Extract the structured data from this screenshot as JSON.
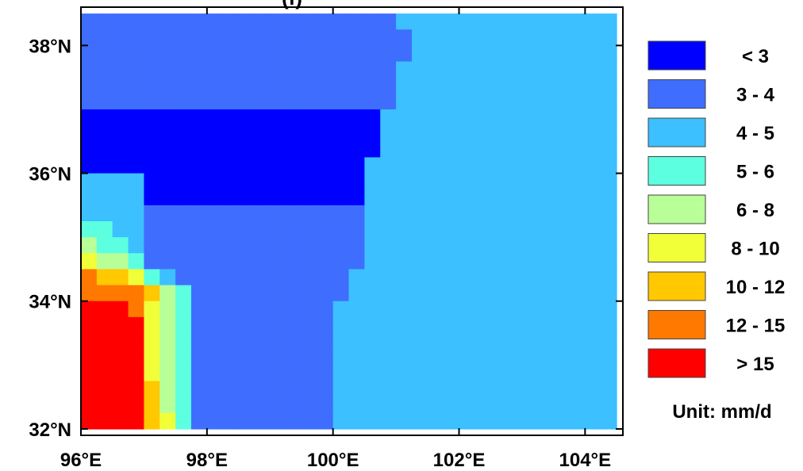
{
  "chart_data": {
    "type": "heatmap",
    "title": "(f)",
    "axes": {
      "x_range": [
        96.0,
        104.6
      ],
      "y_range": [
        31.9,
        38.6
      ],
      "x_ticks": [
        {
          "value": 96,
          "label": "96°E"
        },
        {
          "value": 98,
          "label": "98°E"
        },
        {
          "value": 100,
          "label": "100°E"
        },
        {
          "value": 102,
          "label": "102°E"
        },
        {
          "value": 104,
          "label": "104°E"
        }
      ],
      "y_ticks": [
        {
          "value": 32,
          "label": "32°N"
        },
        {
          "value": 34,
          "label": "34°N"
        },
        {
          "value": 36,
          "label": "36°N"
        },
        {
          "value": 38,
          "label": "38°N"
        }
      ]
    },
    "grid": {
      "lon_min": 96.0,
      "lon_max": 104.5,
      "lat_min": 32.0,
      "lat_max": 38.5,
      "cols": 34,
      "rows": 26,
      "class_rows_north_to_south": [
        "1111111111111111111122222222222222",
        "1111111111111111111112222222222222",
        "1111111111111111111112222222222222",
        "1111111111111111111122222222222222",
        "1111111111111111111122222222222222",
        "1111111111111111111122222222222222",
        "0000000000000000000222222222222222",
        "0000000000000000000222222222222222",
        "0000000000000000000222222222222222",
        "0000000000000000002222222222222222",
        "2222000000000000002222222222222222",
        "2222000000000000002222222222222222",
        "2222111111111111112222222222222222",
        "3322111111111111112222222222222222",
        "4332111111111111112222222222222222",
        "5443111111111111112222222222222222",
        "7665321111111111122222222222222222",
        "7777643111111111122222222222222222",
        "8887543111111111222222222222222222",
        "8888543111111111222222222222222222",
        "8888543111111111222222222222222222",
        "8888543111111111222222222222222222",
        "8888543111111111222222222222222222",
        "8888643111111111222222222222222222",
        "8888643111111111222222222222222222",
        "8888653111111111222222222222222222"
      ]
    },
    "legend": {
      "placement": "right",
      "classes": [
        {
          "label": "< 3",
          "color": "#0000ff"
        },
        {
          "label": "3 - 4",
          "color": "#3f6eff"
        },
        {
          "label": "4 - 5",
          "color": "#3cc0ff"
        },
        {
          "label": "5 - 6",
          "color": "#5cffe0"
        },
        {
          "label": "6 - 8",
          "color": "#b8ff98"
        },
        {
          "label": "8 - 10",
          "color": "#f0ff38"
        },
        {
          "label": "10 - 12",
          "color": "#ffc800"
        },
        {
          "label": "12 - 15",
          "color": "#ff7800"
        },
        {
          "label": "> 15",
          "color": "#ff0000"
        }
      ],
      "unit_label": "Unit: mm/d"
    }
  }
}
